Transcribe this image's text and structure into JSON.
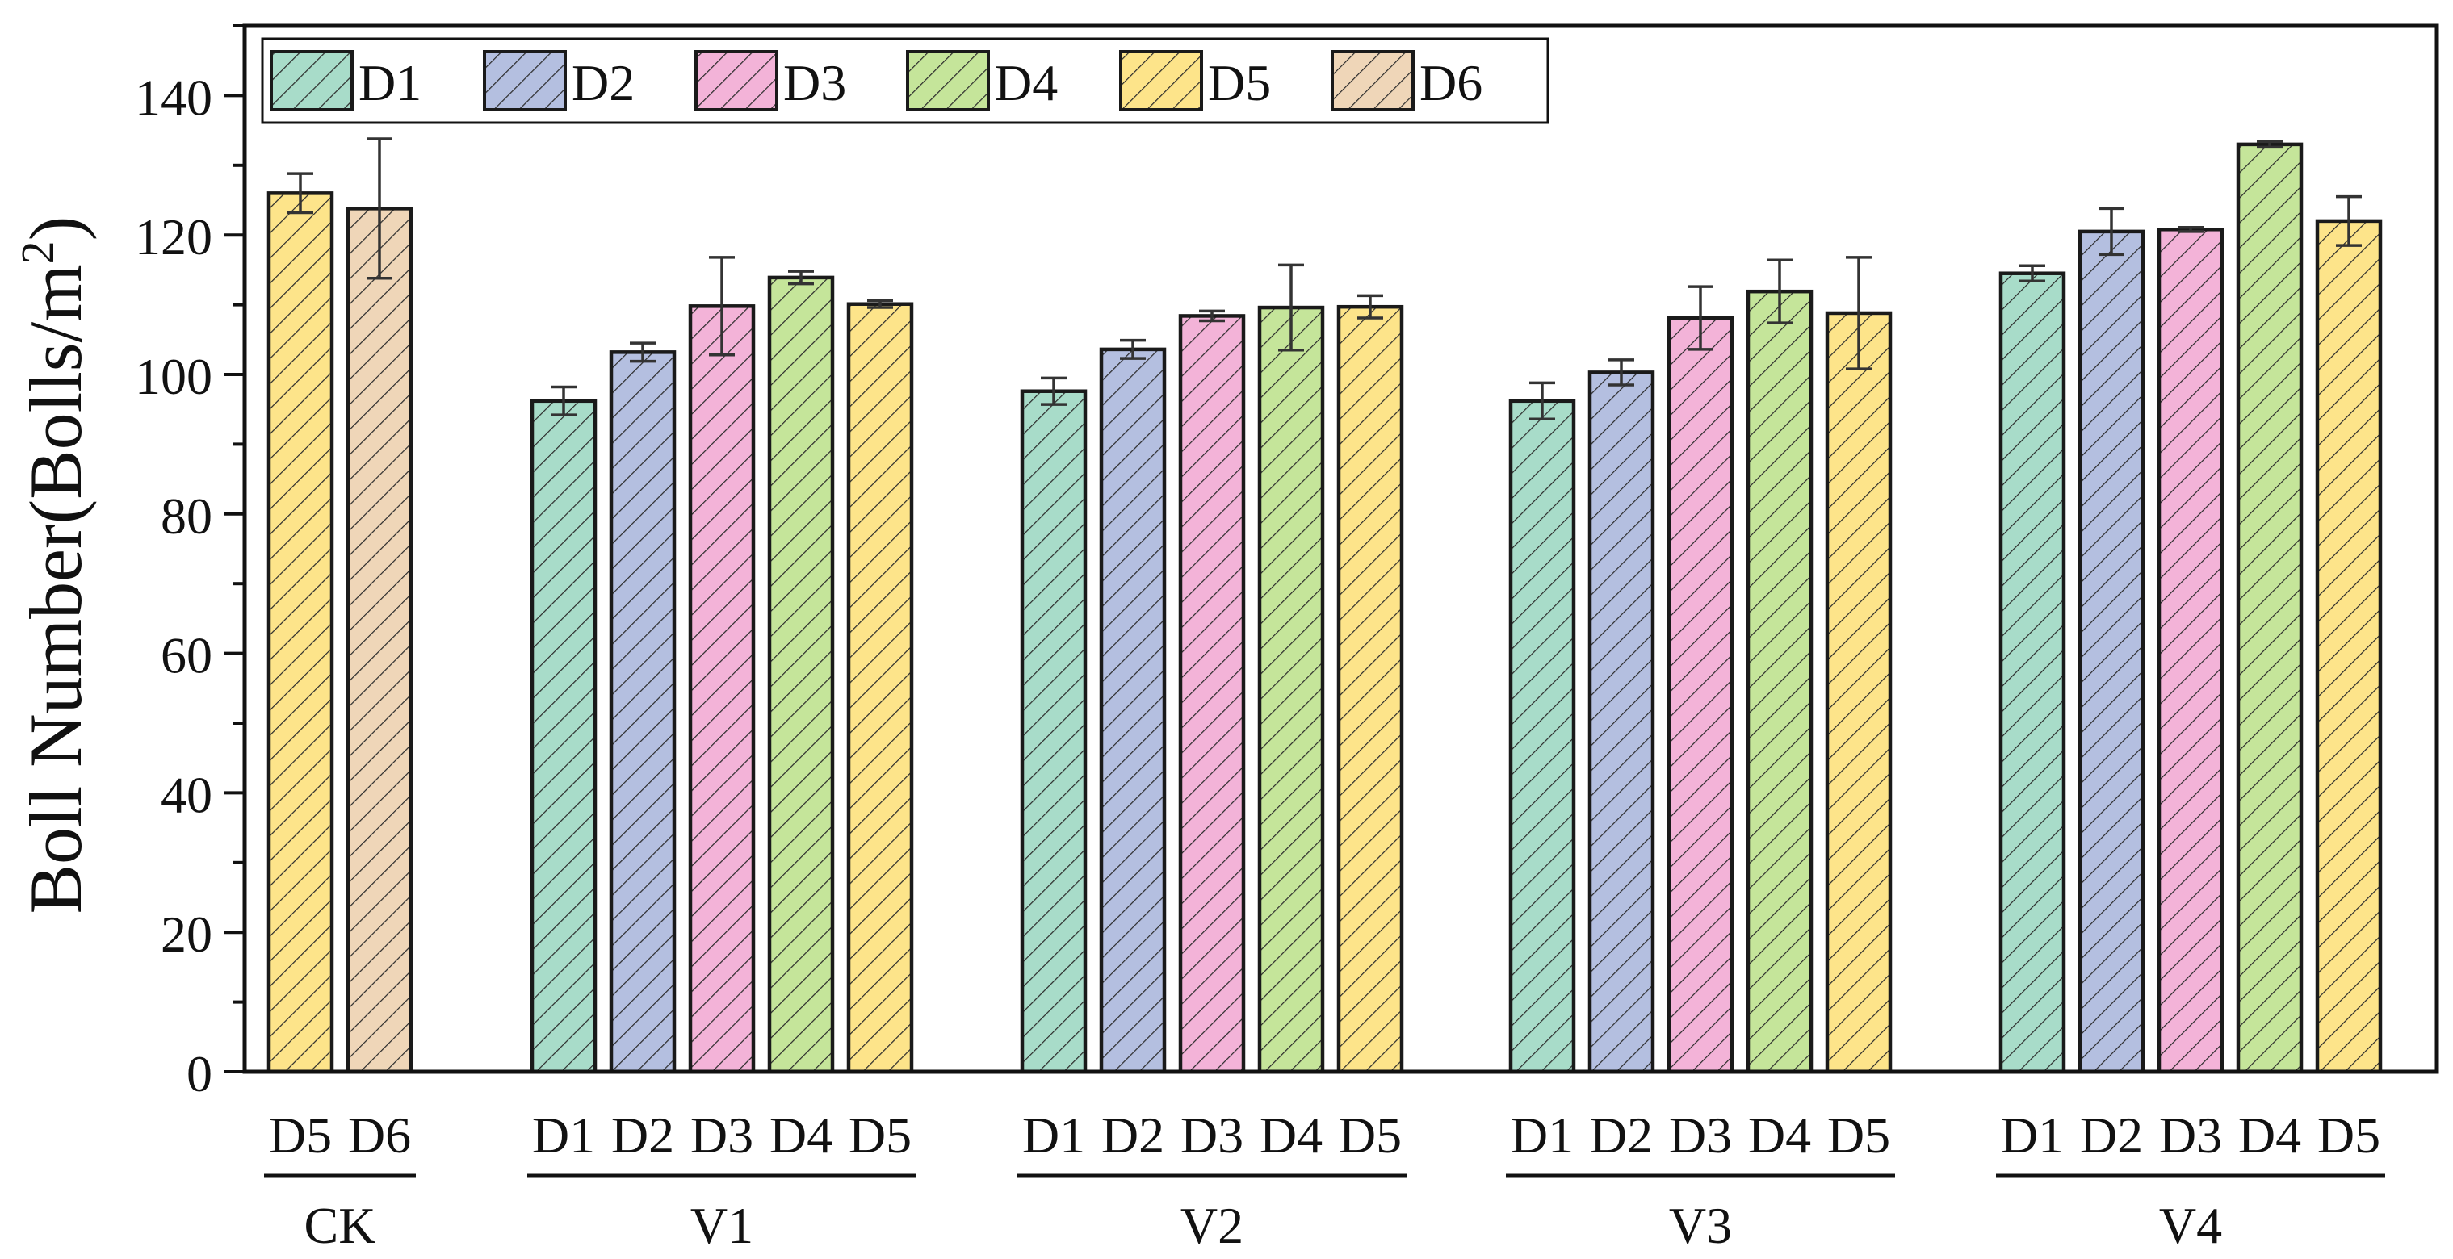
{
  "chart_data": {
    "type": "bar",
    "title": "",
    "xlabel": "",
    "ylabel_main": "Boll Number(Bolls/m",
    "ylabel_sup": "2",
    "ylabel_close": ")",
    "ylim": [
      0,
      150
    ],
    "yticks": [
      0,
      20,
      40,
      60,
      80,
      100,
      120,
      140
    ],
    "legend_position": "top-left",
    "legend": [
      "D1",
      "D2",
      "D3",
      "D4",
      "D5",
      "D6"
    ],
    "colors": {
      "D1": "#a8dcc9",
      "D2": "#b4bfe0",
      "D3": "#f3b3d8",
      "D4": "#c5e59a",
      "D5": "#fde48a",
      "D6": "#efd6b8"
    },
    "groups": [
      {
        "name": "CK",
        "bars": [
          {
            "series": "D5",
            "value": 126.0,
            "error": 2.8
          },
          {
            "series": "D6",
            "value": 123.8,
            "error": 10.0
          }
        ]
      },
      {
        "name": "V1",
        "bars": [
          {
            "series": "D1",
            "value": 96.2,
            "error": 2.0
          },
          {
            "series": "D2",
            "value": 103.2,
            "error": 1.3
          },
          {
            "series": "D3",
            "value": 109.8,
            "error": 7.0
          },
          {
            "series": "D4",
            "value": 113.9,
            "error": 0.9
          },
          {
            "series": "D5",
            "value": 110.1,
            "error": 0.5
          }
        ]
      },
      {
        "name": "V2",
        "bars": [
          {
            "series": "D1",
            "value": 97.6,
            "error": 1.9
          },
          {
            "series": "D2",
            "value": 103.6,
            "error": 1.3
          },
          {
            "series": "D3",
            "value": 108.4,
            "error": 0.7
          },
          {
            "series": "D4",
            "value": 109.6,
            "error": 6.1
          },
          {
            "series": "D5",
            "value": 109.7,
            "error": 1.6
          }
        ]
      },
      {
        "name": "V3",
        "bars": [
          {
            "series": "D1",
            "value": 96.2,
            "error": 2.6
          },
          {
            "series": "D2",
            "value": 100.3,
            "error": 1.8
          },
          {
            "series": "D3",
            "value": 108.1,
            "error": 4.5
          },
          {
            "series": "D4",
            "value": 111.9,
            "error": 4.5
          },
          {
            "series": "D5",
            "value": 108.8,
            "error": 8.0
          }
        ]
      },
      {
        "name": "V4",
        "bars": [
          {
            "series": "D1",
            "value": 114.5,
            "error": 1.1
          },
          {
            "series": "D2",
            "value": 120.5,
            "error": 3.3
          },
          {
            "series": "D3",
            "value": 120.8,
            "error": 0.3
          },
          {
            "series": "D4",
            "value": 133.0,
            "error": 0.4
          },
          {
            "series": "D5",
            "value": 122.0,
            "error": 3.5
          }
        ]
      }
    ]
  }
}
